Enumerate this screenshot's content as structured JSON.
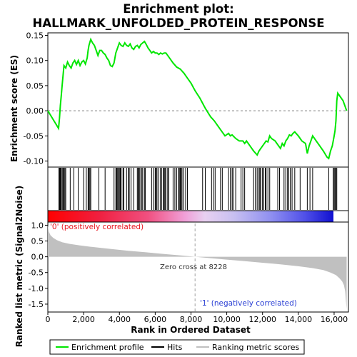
{
  "title_line1": "Enrichment plot:",
  "title_line2": "HALLMARK_UNFOLDED_PROTEIN_RESPONSE",
  "colors": {
    "es_line": "#00e600",
    "hit": "#000000",
    "ranked_fill": "#c0c0c0",
    "heat_pos": "#ff0000",
    "heat_neg": "#0000ff",
    "zero_cross_line": "#a0a0a0",
    "pos_label": "#e8141e",
    "neg_label": "#2a3fd4"
  },
  "annotations": {
    "pos_label": "'0' (positively correlated)",
    "neg_label": "'1' (negatively correlated)",
    "zero_cross": "Zero cross at 8228"
  },
  "legend": {
    "enrichment": "Enrichment profile",
    "hits": "Hits",
    "ranked": "Ranking metric scores"
  },
  "chart_data": [
    {
      "type": "line",
      "name": "enrichment-profile",
      "ylabel": "Enrichment score (ES)",
      "xlim": [
        0,
        16800
      ],
      "ylim": [
        -0.112,
        0.155
      ],
      "yticks": [
        -0.1,
        -0.05,
        0.0,
        0.05,
        0.1,
        0.15
      ],
      "ytick_labels": [
        "-0.10",
        "-0.05",
        "0.00",
        "0.05",
        "0.10",
        "0.15"
      ],
      "grid": false,
      "x": [
        0,
        600,
        650,
        700,
        750,
        800,
        850,
        900,
        1000,
        1100,
        1200,
        1300,
        1400,
        1500,
        1600,
        1700,
        1800,
        1900,
        2000,
        2100,
        2200,
        2250,
        2300,
        2400,
        2500,
        2600,
        2700,
        2800,
        2900,
        3000,
        3100,
        3200,
        3300,
        3400,
        3500,
        3600,
        3700,
        3800,
        3900,
        4000,
        4100,
        4200,
        4300,
        4400,
        4500,
        4600,
        4700,
        4800,
        4900,
        5000,
        5100,
        5200,
        5300,
        5400,
        5500,
        5600,
        5700,
        5800,
        5900,
        6000,
        6100,
        6200,
        6300,
        6400,
        6500,
        6600,
        6700,
        6800,
        7000,
        7200,
        7400,
        7600,
        7800,
        8000,
        8228,
        8500,
        8800,
        9100,
        9300,
        9500,
        9700,
        9900,
        10100,
        10200,
        10300,
        10500,
        10700,
        10900,
        11000,
        11100,
        11300,
        11500,
        11700,
        11800,
        11900,
        12000,
        12100,
        12200,
        12300,
        12400,
        12500,
        12700,
        12900,
        13000,
        13100,
        13200,
        13300,
        13400,
        13500,
        13600,
        13700,
        13800,
        14000,
        14200,
        14400,
        14500,
        14600,
        14700,
        14800,
        15000,
        15200,
        15400,
        15600,
        15700,
        15800,
        15900,
        16000,
        16050,
        16100,
        16150,
        16200,
        16300,
        16500,
        16700
      ],
      "y": [
        0.0,
        -0.035,
        -0.015,
        0.01,
        0.03,
        0.05,
        0.07,
        0.09,
        0.085,
        0.097,
        0.09,
        0.085,
        0.095,
        0.1,
        0.092,
        0.1,
        0.09,
        0.097,
        0.1,
        0.093,
        0.105,
        0.12,
        0.13,
        0.142,
        0.135,
        0.13,
        0.12,
        0.11,
        0.12,
        0.12,
        0.115,
        0.112,
        0.105,
        0.1,
        0.09,
        0.088,
        0.095,
        0.115,
        0.125,
        0.135,
        0.13,
        0.128,
        0.135,
        0.13,
        0.128,
        0.133,
        0.125,
        0.122,
        0.128,
        0.13,
        0.125,
        0.132,
        0.135,
        0.138,
        0.132,
        0.125,
        0.12,
        0.115,
        0.118,
        0.115,
        0.115,
        0.112,
        0.115,
        0.113,
        0.115,
        0.115,
        0.11,
        0.105,
        0.095,
        0.087,
        0.083,
        0.075,
        0.065,
        0.055,
        0.04,
        0.025,
        0.005,
        -0.012,
        -0.02,
        -0.03,
        -0.04,
        -0.05,
        -0.045,
        -0.05,
        -0.048,
        -0.055,
        -0.06,
        -0.06,
        -0.065,
        -0.06,
        -0.07,
        -0.08,
        -0.088,
        -0.08,
        -0.075,
        -0.07,
        -0.065,
        -0.06,
        -0.062,
        -0.05,
        -0.055,
        -0.06,
        -0.07,
        -0.075,
        -0.065,
        -0.07,
        -0.06,
        -0.055,
        -0.048,
        -0.05,
        -0.045,
        -0.042,
        -0.05,
        -0.06,
        -0.065,
        -0.085,
        -0.07,
        -0.06,
        -0.05,
        -0.06,
        -0.07,
        -0.08,
        -0.092,
        -0.095,
        -0.08,
        -0.07,
        -0.05,
        -0.04,
        -0.02,
        0.02,
        0.035,
        0.03,
        0.02,
        0.0
      ]
    },
    {
      "type": "scatter",
      "name": "hits",
      "xlim": [
        0,
        16800
      ],
      "x": [
        620,
        660,
        700,
        740,
        800,
        850,
        900,
        950,
        1000,
        1250,
        1450,
        1700,
        2000,
        2150,
        2250,
        2300,
        2350,
        2400,
        2850,
        3200,
        3700,
        3800,
        3850,
        3900,
        3950,
        4000,
        4050,
        4100,
        4200,
        4250,
        4400,
        4500,
        4550,
        4650,
        4800,
        5000,
        5050,
        5100,
        5150,
        5250,
        5300,
        5400,
        5450,
        5800,
        5900,
        6000,
        6050,
        6100,
        6200,
        6300,
        6350,
        6450,
        6500,
        6550,
        6600,
        6700,
        6750,
        7000,
        7100,
        7200,
        7300,
        7350,
        7400,
        7450,
        7500,
        7600,
        7700,
        7800,
        8650,
        8800,
        9150,
        9250,
        9350,
        9650,
        9750,
        10100,
        10200,
        10300,
        10350,
        10500,
        10800,
        10900,
        11000,
        11500,
        11600,
        11700,
        11800,
        11850,
        11900,
        12000,
        12050,
        12150,
        12200,
        12300,
        12400,
        12850,
        12950,
        13200,
        13300,
        13400,
        13450,
        13550,
        13650,
        13800,
        14100,
        14500,
        14650,
        14800,
        15700,
        15950,
        16000,
        16050,
        16100,
        16150
      ]
    },
    {
      "type": "area",
      "name": "ranked-metric",
      "ylabel": "Ranked list metric (Signal2Noise)",
      "xlabel": "Rank in Ordered Dataset",
      "xlim": [
        0,
        16800
      ],
      "ylim": [
        -1.75,
        1.1
      ],
      "xticks": [
        0,
        2000,
        4000,
        6000,
        8000,
        10000,
        12000,
        14000,
        16000
      ],
      "xtick_labels": [
        "0",
        "2,000",
        "4,000",
        "6,000",
        "8,000",
        "10,000",
        "12,000",
        "14,000",
        "16,000"
      ],
      "yticks": [
        -1.5,
        -1.0,
        -0.5,
        0.0,
        0.5,
        1.0
      ],
      "ytick_labels": [
        "-1.5",
        "-1.0",
        "-0.5",
        "0.0",
        "0.5",
        "1.0"
      ],
      "zero_cross": 8228,
      "x": [
        0,
        50,
        150,
        300,
        500,
        800,
        1200,
        1800,
        2500,
        3500,
        4500,
        5500,
        6500,
        7500,
        8228,
        9000,
        10000,
        11000,
        12000,
        13000,
        14000,
        14800,
        15400,
        15800,
        16100,
        16300,
        16450,
        16550,
        16620,
        16660,
        16700
      ],
      "values": [
        1.0,
        0.8,
        0.68,
        0.6,
        0.53,
        0.46,
        0.41,
        0.36,
        0.31,
        0.25,
        0.19,
        0.14,
        0.09,
        0.04,
        0.0,
        -0.04,
        -0.09,
        -0.14,
        -0.19,
        -0.24,
        -0.3,
        -0.36,
        -0.42,
        -0.5,
        -0.58,
        -0.68,
        -0.78,
        -0.9,
        -1.1,
        -1.4,
        -1.65
      ]
    }
  ]
}
